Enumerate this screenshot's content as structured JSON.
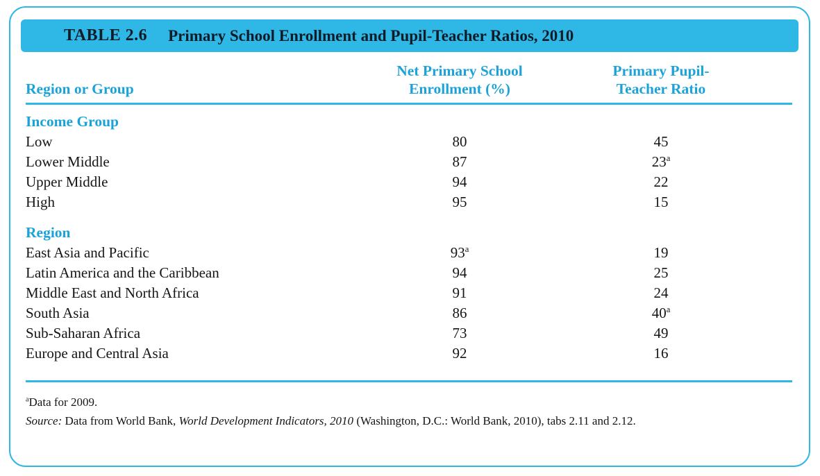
{
  "table": {
    "tag": "TABLE 2.6",
    "title": "Primary School Enrollment and Pupil-Teacher Ratios, 2010",
    "columns": {
      "region": "Region or Group",
      "enrollment_line1": "Net Primary School",
      "enrollment_line2": "Enrollment (%)",
      "ratio_line1": "Primary Pupil-",
      "ratio_line2": "Teacher Ratio"
    },
    "sections": [
      {
        "heading": "Income Group",
        "rows": [
          {
            "label": "Low",
            "enrollment": "80",
            "enrollment_sup": "",
            "ratio": "45",
            "ratio_sup": ""
          },
          {
            "label": "Lower Middle",
            "enrollment": "87",
            "enrollment_sup": "",
            "ratio": "23",
            "ratio_sup": "a"
          },
          {
            "label": "Upper Middle",
            "enrollment": "94",
            "enrollment_sup": "",
            "ratio": "22",
            "ratio_sup": ""
          },
          {
            "label": "High",
            "enrollment": "95",
            "enrollment_sup": "",
            "ratio": "15",
            "ratio_sup": ""
          }
        ]
      },
      {
        "heading": "Region",
        "rows": [
          {
            "label": "East Asia and Pacific",
            "enrollment": "93",
            "enrollment_sup": "a",
            "ratio": "19",
            "ratio_sup": ""
          },
          {
            "label": "Latin America and the Caribbean",
            "enrollment": "94",
            "enrollment_sup": "",
            "ratio": "25",
            "ratio_sup": ""
          },
          {
            "label": "Middle East and North Africa",
            "enrollment": "91",
            "enrollment_sup": "",
            "ratio": "24",
            "ratio_sup": ""
          },
          {
            "label": "South Asia",
            "enrollment": "86",
            "enrollment_sup": "",
            "ratio": "40",
            "ratio_sup": "a"
          },
          {
            "label": "Sub-Saharan Africa",
            "enrollment": "73",
            "enrollment_sup": "",
            "ratio": "49",
            "ratio_sup": ""
          },
          {
            "label": "Europe and Central Asia",
            "enrollment": "92",
            "enrollment_sup": "",
            "ratio": "16",
            "ratio_sup": ""
          }
        ]
      }
    ],
    "footnotes": {
      "note_sup": "a",
      "note_text": "Data for 2009.",
      "source_label": "Source:",
      "source_pre": " Data from World Bank, ",
      "source_italic": "World Development Indicators, 2010",
      "source_post": " (Washington, D.C.: World Bank, 2010), tabs 2.11 and 2.12."
    },
    "colors": {
      "accent": "#2fb7e6",
      "heading_text": "#1ba3d9",
      "title_text": "#101c28"
    }
  },
  "chart_data": {
    "type": "table",
    "title": "TABLE 2.6 Primary School Enrollment and Pupil-Teacher Ratios, 2010",
    "columns": [
      "Region or Group",
      "Net Primary School Enrollment (%)",
      "Primary Pupil-Teacher Ratio"
    ],
    "rows": [
      [
        "Income Group",
        null,
        null
      ],
      [
        "Low",
        80,
        45
      ],
      [
        "Lower Middle",
        87,
        23
      ],
      [
        "Upper Middle",
        94,
        22
      ],
      [
        "High",
        95,
        15
      ],
      [
        "Region",
        null,
        null
      ],
      [
        "East Asia and Pacific",
        93,
        19
      ],
      [
        "Latin America and the Caribbean",
        94,
        25
      ],
      [
        "Middle East and North Africa",
        91,
        24
      ],
      [
        "South Asia",
        86,
        40
      ],
      [
        "Sub-Saharan Africa",
        73,
        49
      ],
      [
        "Europe and Central Asia",
        92,
        16
      ]
    ],
    "notes": "a = Data for 2009 (applies to Lower Middle ratio 23, East Asia and Pacific enrollment 93, South Asia ratio 40)"
  }
}
